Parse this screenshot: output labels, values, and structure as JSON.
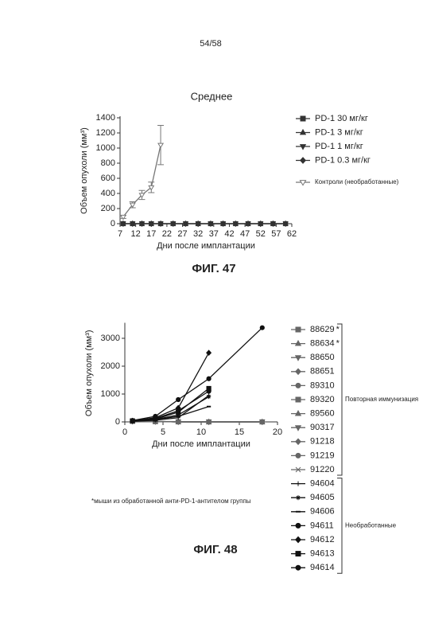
{
  "page_number": "54/58",
  "chart_data": [
    {
      "type": "line",
      "title": "Среднее",
      "caption": "ФИГ. 47",
      "xlabel": "Дни после имплантации",
      "ylabel": "Объем опухоли (мм³)",
      "xlim": [
        7,
        62
      ],
      "xticks": [
        7,
        12,
        17,
        22,
        27,
        32,
        37,
        42,
        47,
        52,
        57,
        62
      ],
      "ylim": [
        0,
        1400
      ],
      "yticks": [
        0,
        200,
        400,
        600,
        800,
        1000,
        1200,
        1400
      ],
      "x": [
        8,
        11,
        14,
        17,
        20,
        24,
        28,
        32,
        36,
        40,
        44,
        48,
        52,
        56,
        60
      ],
      "series": [
        {
          "name": "PD-1 30 мг/кг",
          "color": "#333",
          "marker": "square",
          "values": [
            0,
            0,
            0,
            0,
            0,
            0,
            0,
            0,
            0,
            0,
            0,
            0,
            0,
            0,
            0
          ]
        },
        {
          "name": "PD-1 3 мг/кг",
          "color": "#333",
          "marker": "triangle",
          "values": [
            0,
            0,
            0,
            0,
            0,
            0,
            0,
            0,
            0,
            0,
            0,
            0,
            0,
            0,
            0
          ]
        },
        {
          "name": "PD-1 1 мг/кг",
          "color": "#333",
          "marker": "triangle-down",
          "values": [
            0,
            0,
            0,
            0,
            0,
            0,
            0,
            0,
            0,
            0,
            0,
            0,
            0,
            0,
            0
          ]
        },
        {
          "name": "PD-1 0.3 мг/кг",
          "color": "#333",
          "marker": "diamond",
          "values": [
            0,
            0,
            0,
            0,
            0,
            0,
            0,
            0,
            0,
            0,
            0,
            0,
            0,
            0,
            0
          ]
        },
        {
          "name": "Контроли (необработанные)",
          "color": "#777",
          "marker": "triangle-down-open",
          "values": [
            90,
            250,
            380,
            480,
            1040,
            null,
            null,
            null,
            null,
            null,
            null,
            null,
            null,
            null,
            null
          ],
          "errors": [
            20,
            40,
            60,
            70,
            260,
            null,
            null,
            null,
            null,
            null,
            null,
            null,
            null,
            null,
            null
          ]
        }
      ]
    },
    {
      "type": "line",
      "caption": "ФИГ. 48",
      "xlabel": "Дни после имплантации",
      "ylabel": "Объем опухоли (мм³)",
      "footnote": "*мыши из обработанной анти-PD-1-антителом группы",
      "groups": [
        "Повторная иммунизация",
        "Необработанные"
      ],
      "xlim": [
        0,
        20
      ],
      "xticks": [
        0,
        5,
        10,
        15,
        20
      ],
      "ylim": [
        0,
        3500
      ],
      "yticks": [
        0,
        1000,
        2000,
        3000
      ],
      "x": [
        1,
        4,
        7,
        11,
        18
      ],
      "series": [
        {
          "name": "88629",
          "note": "*",
          "color": "#666",
          "marker": "square",
          "values": [
            20,
            10,
            5,
            0,
            0
          ]
        },
        {
          "name": "88634",
          "note": "*",
          "color": "#666",
          "marker": "triangle",
          "values": [
            20,
            10,
            5,
            0,
            0
          ]
        },
        {
          "name": "88650",
          "color": "#666",
          "marker": "triangle-down",
          "values": [
            30,
            10,
            0,
            0,
            0
          ]
        },
        {
          "name": "88651",
          "color": "#666",
          "marker": "diamond",
          "values": [
            30,
            20,
            10,
            0,
            0
          ]
        },
        {
          "name": "89310",
          "color": "#666",
          "marker": "circle",
          "values": [
            30,
            10,
            0,
            0,
            0
          ]
        },
        {
          "name": "89320",
          "color": "#666",
          "marker": "square",
          "values": [
            20,
            10,
            0,
            0,
            0
          ]
        },
        {
          "name": "89560",
          "color": "#666",
          "marker": "triangle",
          "values": [
            20,
            10,
            0,
            0,
            0
          ]
        },
        {
          "name": "90317",
          "color": "#666",
          "marker": "triangle-down",
          "values": [
            20,
            10,
            0,
            0,
            0
          ]
        },
        {
          "name": "91218",
          "color": "#666",
          "marker": "diamond",
          "values": [
            20,
            10,
            0,
            0,
            0
          ]
        },
        {
          "name": "91219",
          "color": "#666",
          "marker": "circle",
          "values": [
            20,
            10,
            0,
            0,
            0
          ]
        },
        {
          "name": "91220",
          "color": "#666",
          "marker": "x",
          "values": [
            20,
            10,
            0,
            0,
            0
          ]
        },
        {
          "name": "94604",
          "color": "#111",
          "marker": "plus",
          "values": [
            20,
            60,
            150,
            950,
            null
          ]
        },
        {
          "name": "94605",
          "color": "#111",
          "marker": "star",
          "values": [
            30,
            90,
            250,
            900,
            null
          ]
        },
        {
          "name": "94606",
          "color": "#111",
          "marker": "dash",
          "values": [
            30,
            80,
            200,
            550,
            null
          ]
        },
        {
          "name": "94611",
          "color": "#111",
          "marker": "circle",
          "values": [
            40,
            120,
            400,
            1100,
            null
          ]
        },
        {
          "name": "94612",
          "color": "#111",
          "marker": "diamond",
          "values": [
            40,
            150,
            500,
            2480,
            null
          ]
        },
        {
          "name": "94613",
          "color": "#111",
          "marker": "square",
          "values": [
            40,
            100,
            350,
            1200,
            null
          ]
        },
        {
          "name": "94614",
          "color": "#111",
          "marker": "circle",
          "values": [
            50,
            200,
            800,
            1550,
            3380
          ]
        }
      ]
    }
  ]
}
